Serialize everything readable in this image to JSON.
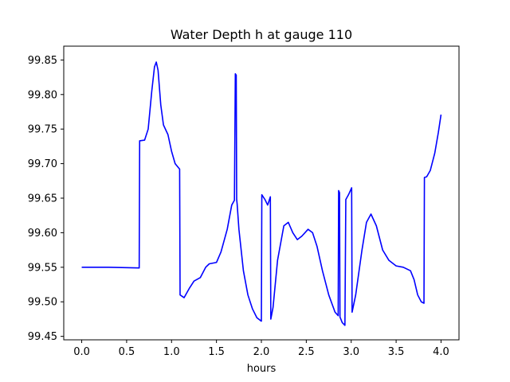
{
  "chart_data": {
    "type": "line",
    "title": "Water Depth h at gauge 110",
    "xlabel": "hours",
    "ylabel": "",
    "xlim": [
      -0.2,
      4.2
    ],
    "ylim": [
      99.445,
      99.87
    ],
    "x_ticks": [
      0.0,
      0.5,
      1.0,
      1.5,
      2.0,
      2.5,
      3.0,
      3.5,
      4.0
    ],
    "x_tick_labels": [
      "0.0",
      "0.5",
      "1.0",
      "1.5",
      "2.0",
      "2.5",
      "3.0",
      "3.5",
      "4.0"
    ],
    "y_ticks": [
      99.45,
      99.5,
      99.55,
      99.6,
      99.65,
      99.7,
      99.75,
      99.8,
      99.85
    ],
    "y_tick_labels": [
      "99.45",
      "99.50",
      "99.55",
      "99.60",
      "99.65",
      "99.70",
      "99.75",
      "99.80",
      "99.85"
    ],
    "grid": false,
    "series": [
      {
        "color": "#0000ff",
        "points": [
          [
            0.0,
            99.55
          ],
          [
            0.3,
            99.55
          ],
          [
            0.64,
            99.549
          ],
          [
            0.645,
            99.733
          ],
          [
            0.7,
            99.734
          ],
          [
            0.74,
            99.75
          ],
          [
            0.78,
            99.805
          ],
          [
            0.81,
            99.84
          ],
          [
            0.83,
            99.847
          ],
          [
            0.85,
            99.835
          ],
          [
            0.88,
            99.785
          ],
          [
            0.91,
            99.756
          ],
          [
            0.96,
            99.742
          ],
          [
            1.0,
            99.718
          ],
          [
            1.04,
            99.7
          ],
          [
            1.09,
            99.692
          ],
          [
            1.095,
            99.51
          ],
          [
            1.14,
            99.506
          ],
          [
            1.2,
            99.52
          ],
          [
            1.25,
            99.53
          ],
          [
            1.32,
            99.535
          ],
          [
            1.38,
            99.55
          ],
          [
            1.42,
            99.555
          ],
          [
            1.5,
            99.557
          ],
          [
            1.55,
            99.572
          ],
          [
            1.62,
            99.605
          ],
          [
            1.67,
            99.64
          ],
          [
            1.7,
            99.647
          ],
          [
            1.71,
            99.83
          ],
          [
            1.72,
            99.828
          ],
          [
            1.725,
            99.648
          ],
          [
            1.73,
            99.642
          ],
          [
            1.75,
            99.605
          ],
          [
            1.8,
            99.545
          ],
          [
            1.85,
            99.51
          ],
          [
            1.9,
            99.49
          ],
          [
            1.95,
            99.477
          ],
          [
            2.0,
            99.472
          ],
          [
            2.005,
            99.655
          ],
          [
            2.04,
            99.648
          ],
          [
            2.07,
            99.64
          ],
          [
            2.1,
            99.652
          ],
          [
            2.105,
            99.475
          ],
          [
            2.13,
            99.492
          ],
          [
            2.18,
            99.56
          ],
          [
            2.25,
            99.61
          ],
          [
            2.3,
            99.615
          ],
          [
            2.35,
            99.6
          ],
          [
            2.4,
            99.59
          ],
          [
            2.45,
            99.595
          ],
          [
            2.52,
            99.605
          ],
          [
            2.57,
            99.6
          ],
          [
            2.62,
            99.58
          ],
          [
            2.68,
            99.545
          ],
          [
            2.75,
            99.51
          ],
          [
            2.82,
            99.485
          ],
          [
            2.855,
            99.48
          ],
          [
            2.86,
            99.661
          ],
          [
            2.87,
            99.658
          ],
          [
            2.875,
            99.478
          ],
          [
            2.9,
            99.47
          ],
          [
            2.93,
            99.466
          ],
          [
            2.94,
            99.648
          ],
          [
            2.97,
            99.655
          ],
          [
            3.005,
            99.665
          ],
          [
            3.01,
            99.485
          ],
          [
            3.05,
            99.51
          ],
          [
            3.12,
            99.575
          ],
          [
            3.17,
            99.615
          ],
          [
            3.22,
            99.627
          ],
          [
            3.28,
            99.61
          ],
          [
            3.35,
            99.575
          ],
          [
            3.42,
            99.56
          ],
          [
            3.5,
            99.552
          ],
          [
            3.58,
            99.55
          ],
          [
            3.66,
            99.545
          ],
          [
            3.7,
            99.532
          ],
          [
            3.74,
            99.51
          ],
          [
            3.78,
            99.5
          ],
          [
            3.81,
            99.498
          ],
          [
            3.815,
            99.68
          ],
          [
            3.84,
            99.681
          ],
          [
            3.88,
            99.69
          ],
          [
            3.93,
            99.715
          ],
          [
            3.97,
            99.745
          ],
          [
            4.0,
            99.771
          ]
        ]
      }
    ]
  }
}
